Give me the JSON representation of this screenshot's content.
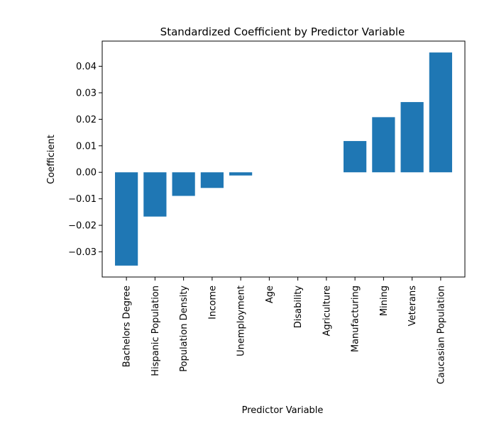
{
  "chart_data": {
    "type": "bar",
    "title": "Standardized Coefficient by Predictor Variable",
    "xlabel": "Predictor Variable",
    "ylabel": "Coefficient",
    "categories": [
      "Bachelors Degree",
      "Hispanic Population",
      "Population Density",
      "Income",
      "Unemployment",
      "Age",
      "Disability",
      "Agriculture",
      "Manufacturing",
      "Mining",
      "Veterans",
      "Caucasian Population"
    ],
    "values": [
      -0.0352,
      -0.0167,
      -0.0089,
      -0.0059,
      -0.0012,
      0,
      0,
      0,
      0.0118,
      0.0208,
      0.0265,
      0.0452
    ],
    "ylim": [
      -0.0395,
      0.0495
    ],
    "yticks": [
      -0.03,
      -0.02,
      -0.01,
      0.0,
      0.01,
      0.02,
      0.03,
      0.04
    ],
    "ytick_labels": [
      "−0.03",
      "−0.02",
      "−0.01",
      "0.00",
      "0.01",
      "0.02",
      "0.03",
      "0.04"
    ],
    "grid": false,
    "colors": {
      "bar": "#1f77b4",
      "axis": "#000000",
      "background": "#ffffff"
    }
  }
}
